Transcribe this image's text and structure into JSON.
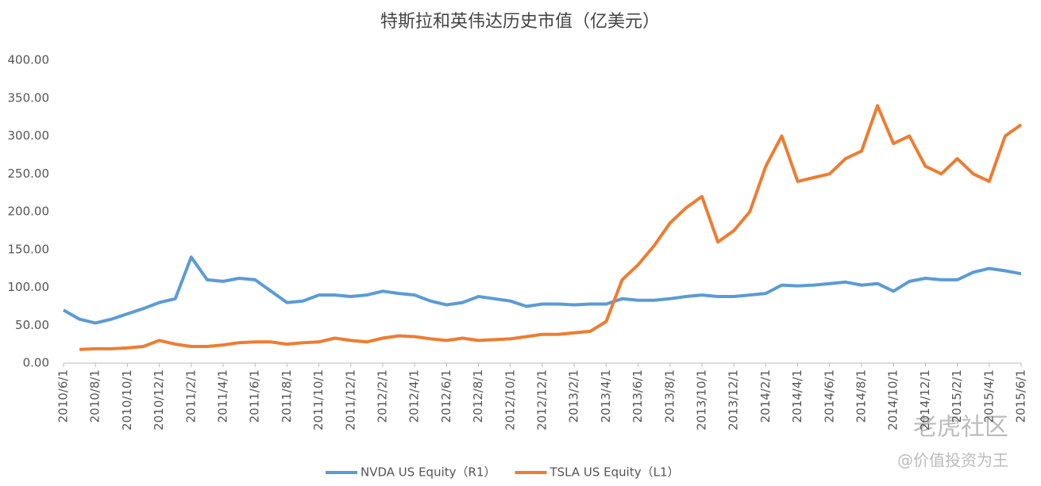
{
  "chart_data": {
    "type": "line",
    "title": "特斯拉和英伟达历史市值（亿美元）",
    "categories": [
      "2010/6/1",
      null,
      "2010/8/1",
      null,
      "2010/10/1",
      null,
      "2010/12/1",
      null,
      "2011/2/1",
      null,
      "2011/4/1",
      null,
      "2011/6/1",
      null,
      "2011/8/1",
      null,
      "2011/10/1",
      null,
      "2011/12/1",
      null,
      "2012/2/1",
      null,
      "2012/4/1",
      null,
      "2012/6/1",
      null,
      "2012/8/1",
      null,
      "2012/10/1",
      null,
      "2012/12/1",
      null,
      "2013/2/1",
      null,
      "2013/4/1",
      null,
      "2013/6/1",
      null,
      "2013/8/1",
      null,
      "2013/10/1",
      null,
      "2013/12/1",
      null,
      "2014/2/1",
      null,
      "2014/4/1",
      null,
      "2014/6/1",
      null,
      "2014/8/1",
      null,
      "2014/10/1",
      null,
      "2014/12/1",
      null,
      "2015/2/1",
      null,
      "2015/4/1",
      null,
      "2015/6/1"
    ],
    "series": [
      {
        "name": "NVDA US Equity（R1）",
        "color": "#5b9bd5",
        "values": [
          70,
          58,
          53,
          58,
          65,
          72,
          80,
          85,
          140,
          110,
          108,
          112,
          110,
          95,
          80,
          82,
          90,
          90,
          88,
          90,
          95,
          92,
          90,
          82,
          77,
          80,
          88,
          85,
          82,
          75,
          78,
          78,
          77,
          78,
          78,
          85,
          83,
          83,
          85,
          88,
          90,
          88,
          88,
          90,
          92,
          103,
          102,
          103,
          105,
          107,
          103,
          105,
          95,
          108,
          112,
          110,
          110,
          120,
          125,
          122,
          118
        ]
      },
      {
        "name": "TSLA US Equity（L1）",
        "color": "#ed7d31",
        "values": [
          null,
          18,
          19,
          19,
          20,
          22,
          30,
          25,
          22,
          22,
          24,
          27,
          28,
          28,
          25,
          27,
          28,
          33,
          30,
          28,
          33,
          36,
          35,
          32,
          30,
          33,
          30,
          31,
          32,
          35,
          38,
          38,
          40,
          42,
          55,
          110,
          130,
          155,
          185,
          205,
          220,
          160,
          175,
          200,
          260,
          300,
          240,
          245,
          250,
          270,
          280,
          340,
          290,
          300,
          260,
          250,
          270,
          250,
          240,
          300,
          315
        ]
      }
    ],
    "ylim": [
      0,
      400
    ],
    "yticks": [
      {
        "value": 0,
        "label": "0.00"
      },
      {
        "value": 50,
        "label": "50.00"
      },
      {
        "value": 100,
        "label": "100.00"
      },
      {
        "value": 150,
        "label": "150.00"
      },
      {
        "value": 200,
        "label": "200.00"
      },
      {
        "value": 250,
        "label": "250.00"
      },
      {
        "value": 300,
        "label": "300.00"
      },
      {
        "value": 350,
        "label": "350.00"
      },
      {
        "value": 400,
        "label": "400.00"
      }
    ],
    "grid": false,
    "legend": "bottom",
    "watermark": [
      "老虎社区",
      "@价值投资为王"
    ]
  }
}
